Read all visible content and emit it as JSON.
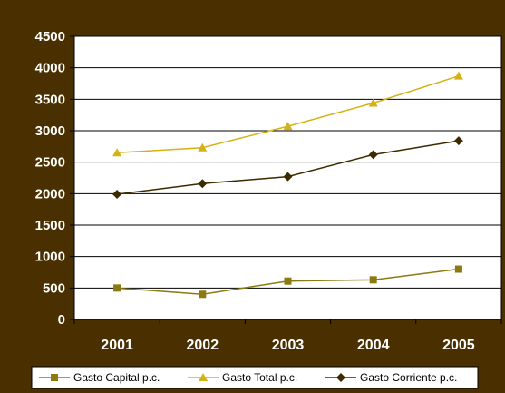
{
  "chart_data": {
    "type": "line",
    "title": "",
    "xlabel": "",
    "ylabel": "",
    "categories": [
      "2001",
      "2002",
      "2003",
      "2004",
      "2005"
    ],
    "ylim": [
      0,
      4500
    ],
    "yticks": [
      0,
      500,
      1000,
      1500,
      2000,
      2500,
      3000,
      3500,
      4000,
      4500
    ],
    "grid": true,
    "legend_position": "bottom",
    "series": [
      {
        "name": "Gasto Capital p.c.",
        "values": [
          500,
          400,
          610,
          630,
          800
        ],
        "color": "#8b7a10",
        "marker": "square"
      },
      {
        "name": "Gasto Total p.c.",
        "values": [
          2650,
          2730,
          3070,
          3440,
          3870
        ],
        "color": "#d4b216",
        "marker": "triangle"
      },
      {
        "name": "Gasto Corriente p.c.",
        "values": [
          1990,
          2160,
          2270,
          2620,
          2840
        ],
        "color": "#3d2b00",
        "marker": "diamond"
      }
    ]
  }
}
